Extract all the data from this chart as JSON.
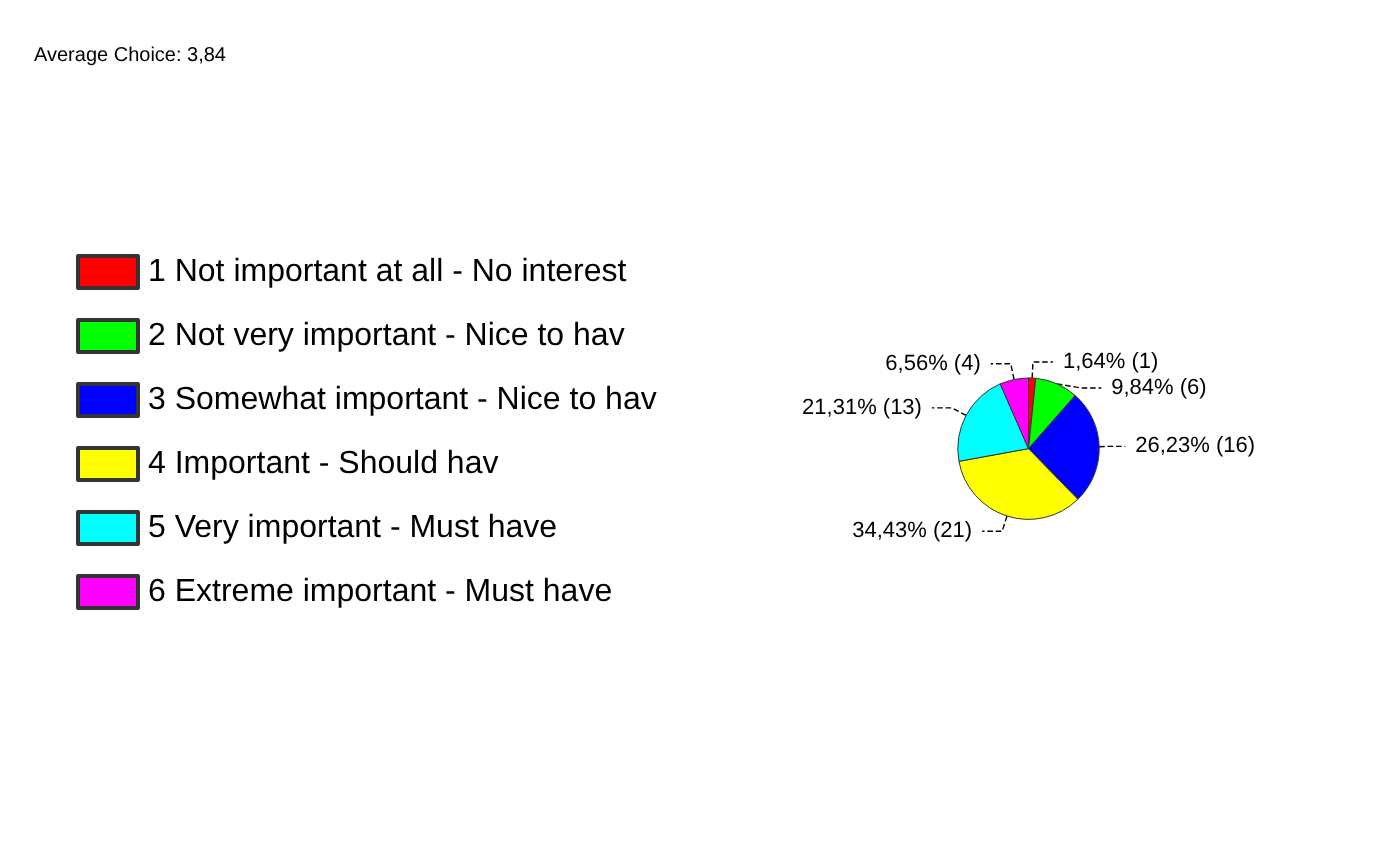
{
  "chart_data": {
    "type": "pie",
    "title": "Average Choice: 3,84",
    "categories": [
      "1 Not important at all - No interest",
      "2 Not very important - Nice to hav",
      "3 Somewhat important - Nice to hav",
      "4 Important - Should hav",
      "5 Very important - Must have",
      "6 Extreme important - Must have"
    ],
    "values": [
      1,
      6,
      16,
      21,
      13,
      4
    ],
    "value_labels": [
      "1,64% (1)",
      "9,84% (6)",
      "26,23% (16)",
      "34,43% (21)",
      "21,31% (13)",
      "6,56% (4)"
    ],
    "colors": [
      "#ff0000",
      "#00ff00",
      "#0000ff",
      "#ffff00",
      "#00ffff",
      "#ff00ff"
    ],
    "legend": "left"
  }
}
